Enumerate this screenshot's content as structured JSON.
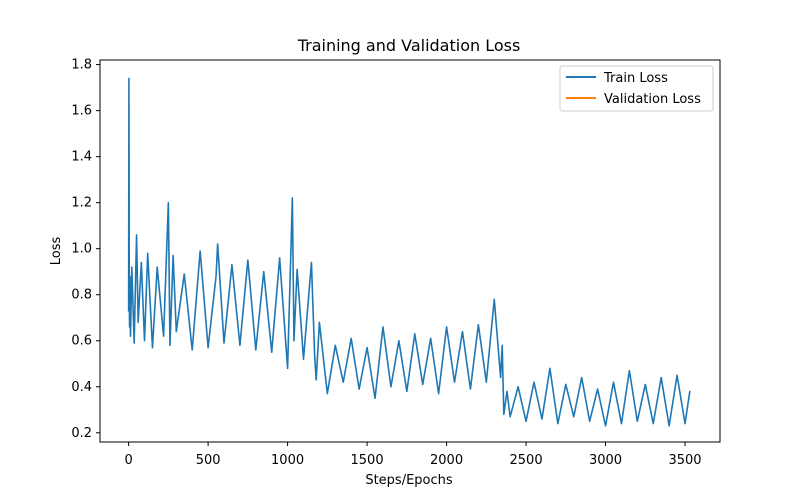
{
  "chart_data": {
    "type": "line",
    "title": "Training and Validation Loss",
    "xlabel": "Steps/Epochs",
    "ylabel": "Loss",
    "xlim": [
      -180,
      3720
    ],
    "ylim": [
      0.16,
      1.82
    ],
    "xticks": [
      0,
      500,
      1000,
      1500,
      2000,
      2500,
      3000,
      3500
    ],
    "yticks": [
      0.2,
      0.4,
      0.6,
      0.8,
      1.0,
      1.2,
      1.4,
      1.6,
      1.8
    ],
    "xtick_labels": [
      "0",
      "500",
      "1000",
      "1500",
      "2000",
      "2500",
      "3000",
      "3500"
    ],
    "ytick_labels": [
      "0.2",
      "0.4",
      "0.6",
      "0.8",
      "1.0",
      "1.2",
      "1.4",
      "1.6",
      "1.8"
    ],
    "grid": false,
    "legend_position": "top-right",
    "colors": {
      "train": "#1f77b4",
      "validation": "#ff7f0e",
      "axes": "#000000",
      "background": "#ffffff",
      "legend_border": "#cccccc"
    },
    "series": [
      {
        "name": "Train Loss",
        "x": [
          0,
          2,
          4,
          6,
          8,
          10,
          12,
          20,
          35,
          50,
          60,
          80,
          100,
          120,
          150,
          180,
          220,
          250,
          260,
          280,
          300,
          350,
          400,
          450,
          500,
          550,
          560,
          600,
          650,
          700,
          750,
          800,
          850,
          900,
          950,
          1000,
          1030,
          1040,
          1060,
          1100,
          1150,
          1170,
          1180,
          1200,
          1250,
          1300,
          1350,
          1400,
          1450,
          1500,
          1550,
          1600,
          1650,
          1700,
          1750,
          1800,
          1850,
          1900,
          1950,
          2000,
          2050,
          2100,
          2150,
          2200,
          2250,
          2300,
          2340,
          2350,
          2360,
          2380,
          2400,
          2450,
          2500,
          2550,
          2600,
          2650,
          2700,
          2750,
          2800,
          2850,
          2900,
          2950,
          3000,
          3050,
          3100,
          3150,
          3200,
          3250,
          3300,
          3350,
          3400,
          3450,
          3500,
          3530
        ],
        "y": [
          0.73,
          1.74,
          0.82,
          0.66,
          0.88,
          0.7,
          0.62,
          0.92,
          0.59,
          1.06,
          0.68,
          0.94,
          0.6,
          0.98,
          0.57,
          0.92,
          0.62,
          1.2,
          0.58,
          0.97,
          0.64,
          0.89,
          0.56,
          0.99,
          0.57,
          0.88,
          1.02,
          0.59,
          0.93,
          0.58,
          0.95,
          0.56,
          0.9,
          0.55,
          0.96,
          0.48,
          1.22,
          0.6,
          0.91,
          0.52,
          0.94,
          0.54,
          0.43,
          0.68,
          0.37,
          0.58,
          0.42,
          0.61,
          0.39,
          0.57,
          0.35,
          0.66,
          0.4,
          0.6,
          0.38,
          0.63,
          0.41,
          0.61,
          0.37,
          0.66,
          0.42,
          0.64,
          0.39,
          0.67,
          0.42,
          0.78,
          0.44,
          0.58,
          0.28,
          0.38,
          0.27,
          0.4,
          0.25,
          0.42,
          0.26,
          0.48,
          0.24,
          0.41,
          0.27,
          0.44,
          0.25,
          0.39,
          0.23,
          0.42,
          0.24,
          0.47,
          0.25,
          0.41,
          0.24,
          0.44,
          0.23,
          0.45,
          0.24,
          0.38
        ]
      },
      {
        "name": "Validation Loss",
        "x": [],
        "y": []
      }
    ]
  }
}
